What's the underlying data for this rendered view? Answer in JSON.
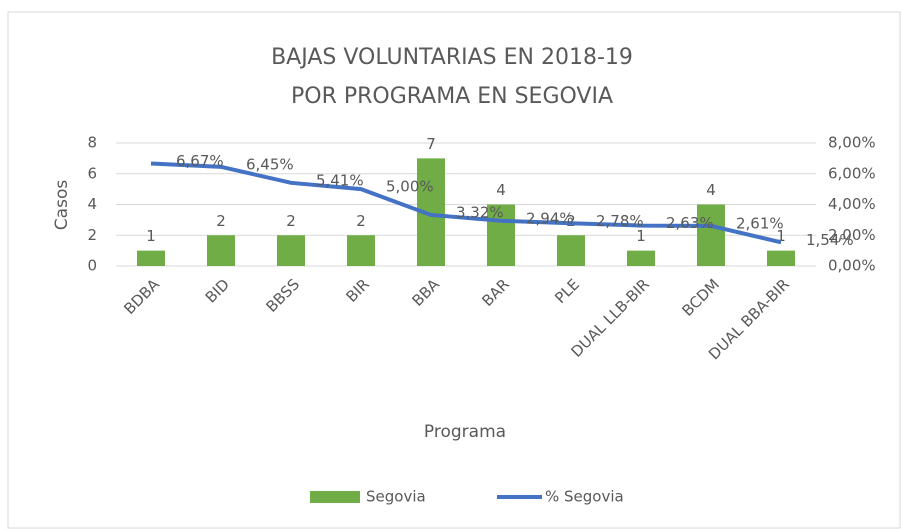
{
  "chart_data": {
    "type": "combo",
    "title": [
      "BAJAS VOLUNTARIAS EN 2018-19",
      "POR PROGRAMA EN SEGOVIA"
    ],
    "x_label": "Programa",
    "y_label": "Casos",
    "categories": [
      "BDBA",
      "BID",
      "BBSS",
      "BIR",
      "BBA",
      "BAR",
      "PLE",
      "DUAL LLB-BIR",
      "BCDM",
      "DUAL BBA-BIR"
    ],
    "series": [
      {
        "name": "Segovia",
        "type": "bar",
        "color": "#70ad47",
        "values": [
          1,
          2,
          2,
          2,
          7,
          4,
          2,
          1,
          4,
          1
        ]
      },
      {
        "name": "% Segovia",
        "type": "line",
        "axis": "y2",
        "color": "#4472c4",
        "values": [
          6.67,
          6.45,
          5.41,
          5.0,
          3.32,
          2.94,
          2.78,
          2.63,
          2.61,
          1.54
        ],
        "value_labels": [
          "6,67%",
          "6,45%",
          "5,41%",
          "5,00%",
          "3,32%",
          "2,94%",
          "2,78%",
          "2,63%",
          "2,61%",
          "1,54%"
        ]
      }
    ],
    "ylim": [
      0,
      8
    ],
    "yticks": [
      0,
      2,
      4,
      6,
      8
    ],
    "y2lim": [
      0,
      8
    ],
    "y2ticks": [
      {
        "value": 0,
        "label": "0,00%"
      },
      {
        "value": 2,
        "label": "2,00%"
      },
      {
        "value": 4,
        "label": "4,00%"
      },
      {
        "value": 6,
        "label": "6,00%"
      },
      {
        "value": 8,
        "label": "8,00%"
      }
    ],
    "grid": true,
    "legend": "bottom"
  }
}
